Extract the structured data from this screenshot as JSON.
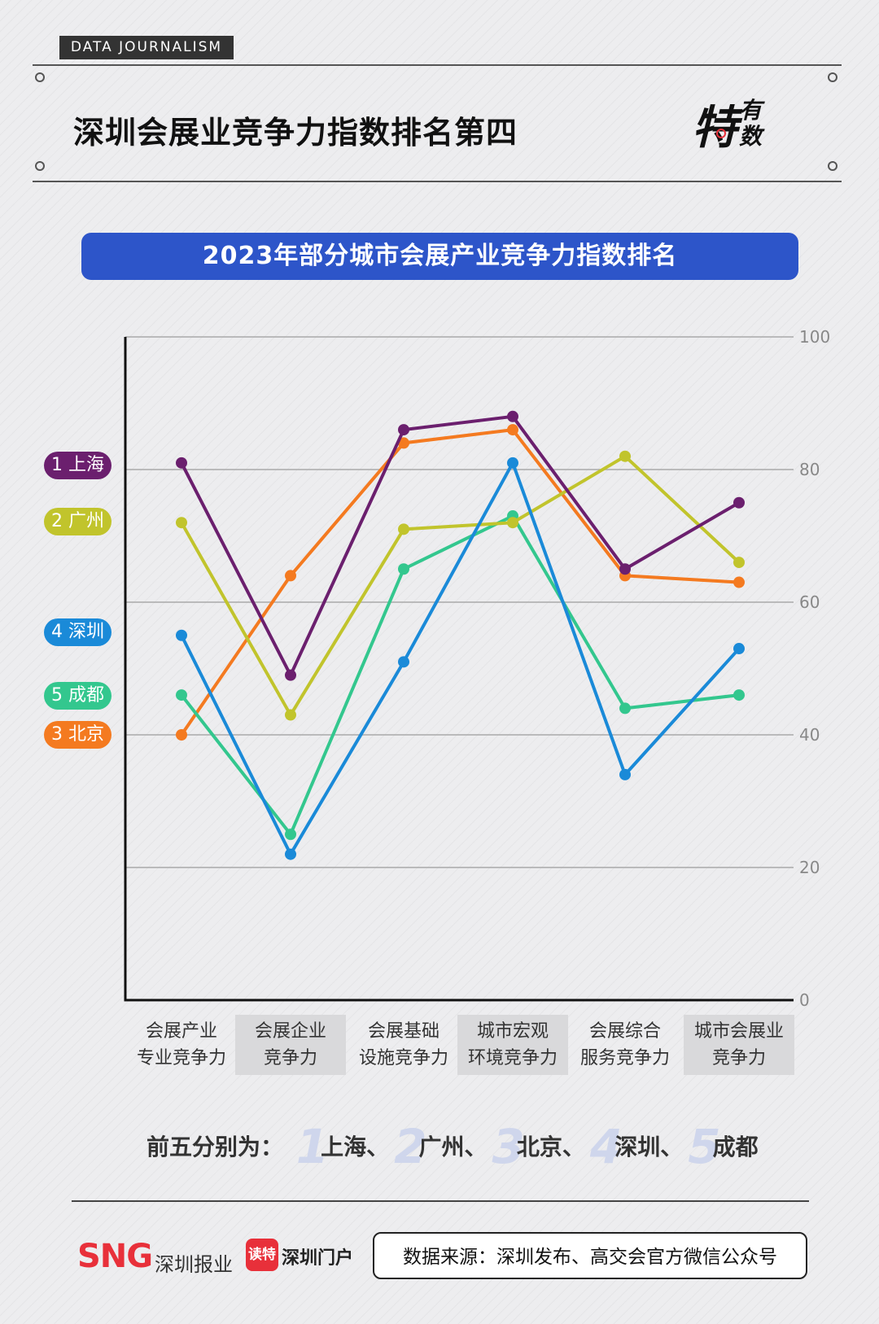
{
  "header": {
    "tag": "DATA JOURNALISM",
    "title": "深圳会展业竞争力指数排名第四",
    "logo_top": "特",
    "logo_small_1": "有",
    "logo_small_2": "数"
  },
  "banner": {
    "title": "2023年部分城市会展产业竞争力指数排名"
  },
  "badges": [
    {
      "label": "1 上海",
      "color": "#6b1f6e"
    },
    {
      "label": "2 广州",
      "color": "#c1c42c"
    },
    {
      "label": "4 深圳",
      "color": "#1a8ad8"
    },
    {
      "label": "5 成都",
      "color": "#33c78e"
    },
    {
      "label": "3 北京",
      "color": "#f47a20"
    }
  ],
  "chart_data": {
    "type": "line",
    "title": "2023年部分城市会展产业竞争力指数排名",
    "categories": [
      "会展产业\n专业竞争力",
      "会展企业\n竞争力",
      "会展基础\n设施竞争力",
      "城市宏观\n环境竞争力",
      "会展综合\n服务竞争力",
      "城市会展业\n竞争力"
    ],
    "ylim": [
      0,
      100
    ],
    "yticks": [
      0,
      20,
      40,
      60,
      80,
      100
    ],
    "grid": true,
    "series": [
      {
        "name": "上海",
        "color": "#6b1f6e",
        "values": [
          81,
          49,
          86,
          88,
          65,
          75
        ]
      },
      {
        "name": "广州",
        "color": "#c1c42c",
        "values": [
          72,
          43,
          71,
          72,
          82,
          66
        ]
      },
      {
        "name": "深圳",
        "color": "#1a8ad8",
        "values": [
          55,
          22,
          51,
          81,
          34,
          53
        ]
      },
      {
        "name": "成都",
        "color": "#33c78e",
        "values": [
          46,
          25,
          65,
          73,
          44,
          46
        ]
      },
      {
        "name": "北京",
        "color": "#f47a20",
        "values": [
          40,
          64,
          84,
          86,
          64,
          63
        ]
      }
    ]
  },
  "summary": {
    "prefix": "前五分别为：",
    "items": [
      {
        "num": "1",
        "city": "上海、"
      },
      {
        "num": "2",
        "city": "广州、"
      },
      {
        "num": "3",
        "city": "北京、"
      },
      {
        "num": "4",
        "city": "深圳、"
      },
      {
        "num": "5",
        "city": "成都"
      }
    ]
  },
  "footer": {
    "sng": "SNG",
    "sng_sub": "深圳报业",
    "du": "读特",
    "du_sub": "深圳门户",
    "source": "数据来源：深圳发布、高交会官方微信公众号"
  }
}
